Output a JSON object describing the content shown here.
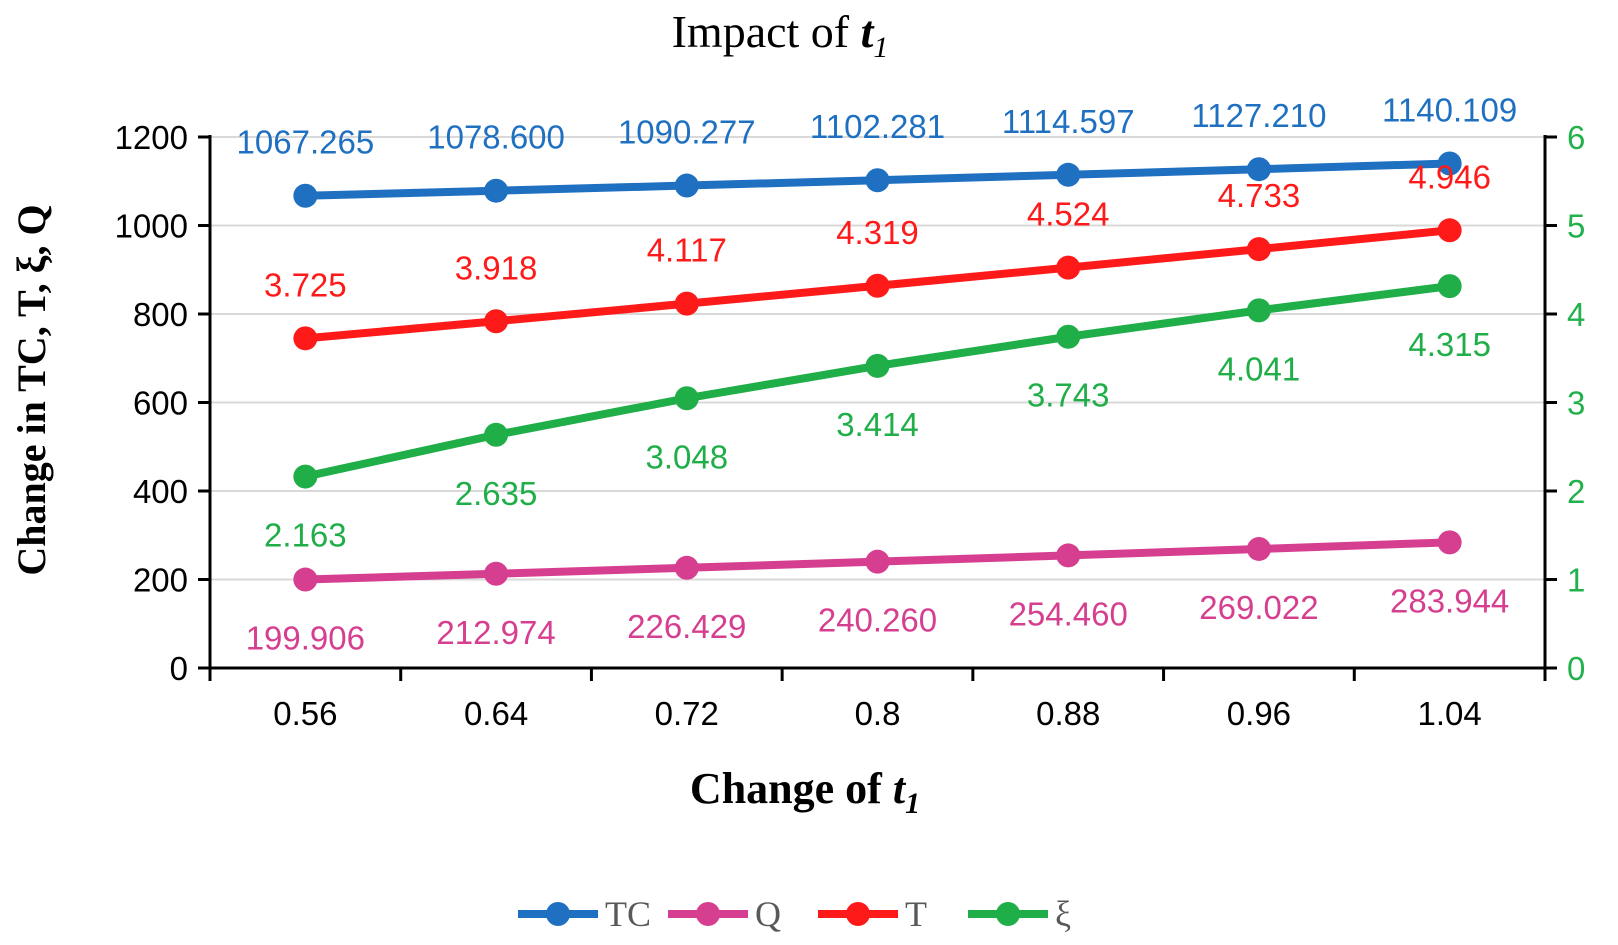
{
  "chart_data": {
    "type": "line",
    "title_main": "Impact of ",
    "title_var": "t",
    "title_sub": "1",
    "xlabel_main": "Change of ",
    "xlabel_var": "t",
    "xlabel_sub": "1",
    "ylabel": "Change in TC, T, ξ, Q",
    "categories": [
      "0.56",
      "0.64",
      "0.72",
      "0.8",
      "0.88",
      "0.96",
      "1.04"
    ],
    "y_left": {
      "min": 0,
      "max": 1200,
      "ticks": [
        "0",
        "200",
        "400",
        "600",
        "800",
        "1000",
        "1200"
      ]
    },
    "y_right": {
      "min": 0,
      "max": 6,
      "ticks": [
        "0",
        "1",
        "2",
        "3",
        "4",
        "5",
        "6"
      ],
      "color": "#22b14c"
    },
    "gridlines": true,
    "legend_position": "bottom",
    "series": [
      {
        "name": "TC",
        "axis": "left",
        "color": "#1f70c1",
        "label_position": "above",
        "values": [
          1067.265,
          1078.6,
          1090.277,
          1102.281,
          1114.597,
          1127.21,
          1140.109
        ],
        "labels": [
          "1067.265",
          "1078.600",
          "1090.277",
          "1102.281",
          "1114.597",
          "1127.210",
          "1140.109"
        ]
      },
      {
        "name": "Q",
        "axis": "left",
        "color": "#d63f8f",
        "label_position": "below",
        "values": [
          199.906,
          212.974,
          226.429,
          240.26,
          254.46,
          269.022,
          283.944
        ],
        "labels": [
          "199.906",
          "212.974",
          "226.429",
          "240.260",
          "254.460",
          "269.022",
          "283.944"
        ]
      },
      {
        "name": "T",
        "axis": "right",
        "color": "#ff1a1a",
        "label_position": "above",
        "values": [
          3.725,
          3.918,
          4.117,
          4.319,
          4.524,
          4.733,
          4.946
        ],
        "labels": [
          "3.725",
          "3.918",
          "4.117",
          "4.319",
          "4.524",
          "4.733",
          "4.946"
        ]
      },
      {
        "name": "ξ",
        "axis": "right",
        "color": "#1fae48",
        "label_position": "below",
        "values": [
          2.163,
          2.635,
          3.048,
          3.414,
          3.743,
          4.041,
          4.315
        ],
        "labels": [
          "2.163",
          "2.635",
          "3.048",
          "3.414",
          "3.743",
          "4.041",
          "4.315"
        ]
      }
    ]
  }
}
